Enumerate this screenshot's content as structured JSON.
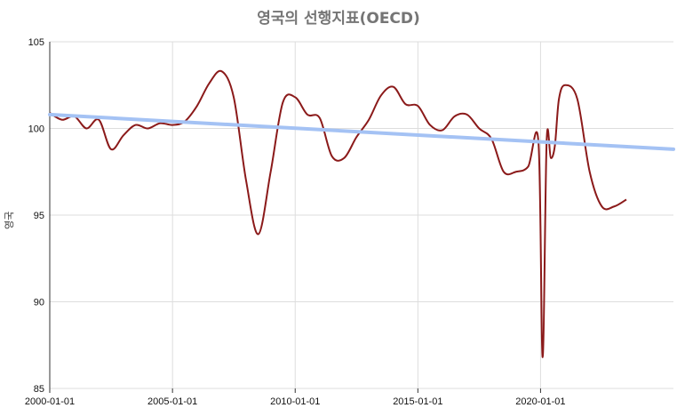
{
  "chart_data": {
    "type": "line",
    "title": "영국의 선행지표(OECD)",
    "xlabel": "",
    "ylabel": "영국",
    "ylim": [
      85,
      105
    ],
    "yticks": [
      85,
      90,
      95,
      100,
      105
    ],
    "xticks": [
      "2000-01-01",
      "2005-01-01",
      "2010-01-01",
      "2015-01-01",
      "2020-01-01"
    ],
    "xlim": [
      "2000-01-01",
      "2025-06-01"
    ],
    "grid": true,
    "series": [
      {
        "role": "data",
        "color": "#8B1A1A",
        "x": [
          "2000-01-01",
          "2000-07-01",
          "2001-01-01",
          "2001-07-01",
          "2002-01-01",
          "2002-07-01",
          "2003-01-01",
          "2003-07-01",
          "2004-01-01",
          "2004-07-01",
          "2005-01-01",
          "2005-07-01",
          "2006-01-01",
          "2006-07-01",
          "2007-01-01",
          "2007-07-01",
          "2008-01-01",
          "2008-07-01",
          "2009-01-01",
          "2009-07-01",
          "2010-01-01",
          "2010-07-01",
          "2011-01-01",
          "2011-07-01",
          "2012-01-01",
          "2012-07-01",
          "2013-01-01",
          "2013-07-01",
          "2014-01-01",
          "2014-07-01",
          "2015-01-01",
          "2015-07-01",
          "2016-01-01",
          "2016-07-01",
          "2017-01-01",
          "2017-07-01",
          "2018-01-01",
          "2018-07-01",
          "2019-01-01",
          "2019-07-01",
          "2019-12-01",
          "2020-02-01",
          "2020-04-01",
          "2020-06-01",
          "2020-08-01",
          "2020-10-01",
          "2021-01-01",
          "2021-07-01",
          "2022-01-01",
          "2022-07-01",
          "2023-01-01",
          "2023-07-01"
        ],
        "values": [
          100.9,
          100.5,
          100.7,
          100.0,
          100.5,
          98.8,
          99.6,
          100.2,
          100.0,
          100.3,
          100.2,
          100.4,
          101.3,
          102.6,
          103.3,
          101.8,
          97.0,
          93.9,
          97.5,
          101.5,
          101.8,
          100.8,
          100.6,
          98.4,
          98.3,
          99.5,
          100.5,
          101.9,
          102.4,
          101.4,
          101.3,
          100.2,
          99.9,
          100.7,
          100.8,
          100.0,
          99.4,
          97.5,
          97.5,
          97.8,
          99.2,
          86.8,
          99.3,
          98.3,
          99.0,
          101.7,
          102.5,
          101.7,
          97.5,
          95.5,
          95.5,
          95.9
        ]
      },
      {
        "role": "trend",
        "color": "#A4C2F4",
        "x": [
          "2000-01-01",
          "2025-06-01"
        ],
        "values": [
          100.8,
          98.8
        ]
      }
    ]
  }
}
